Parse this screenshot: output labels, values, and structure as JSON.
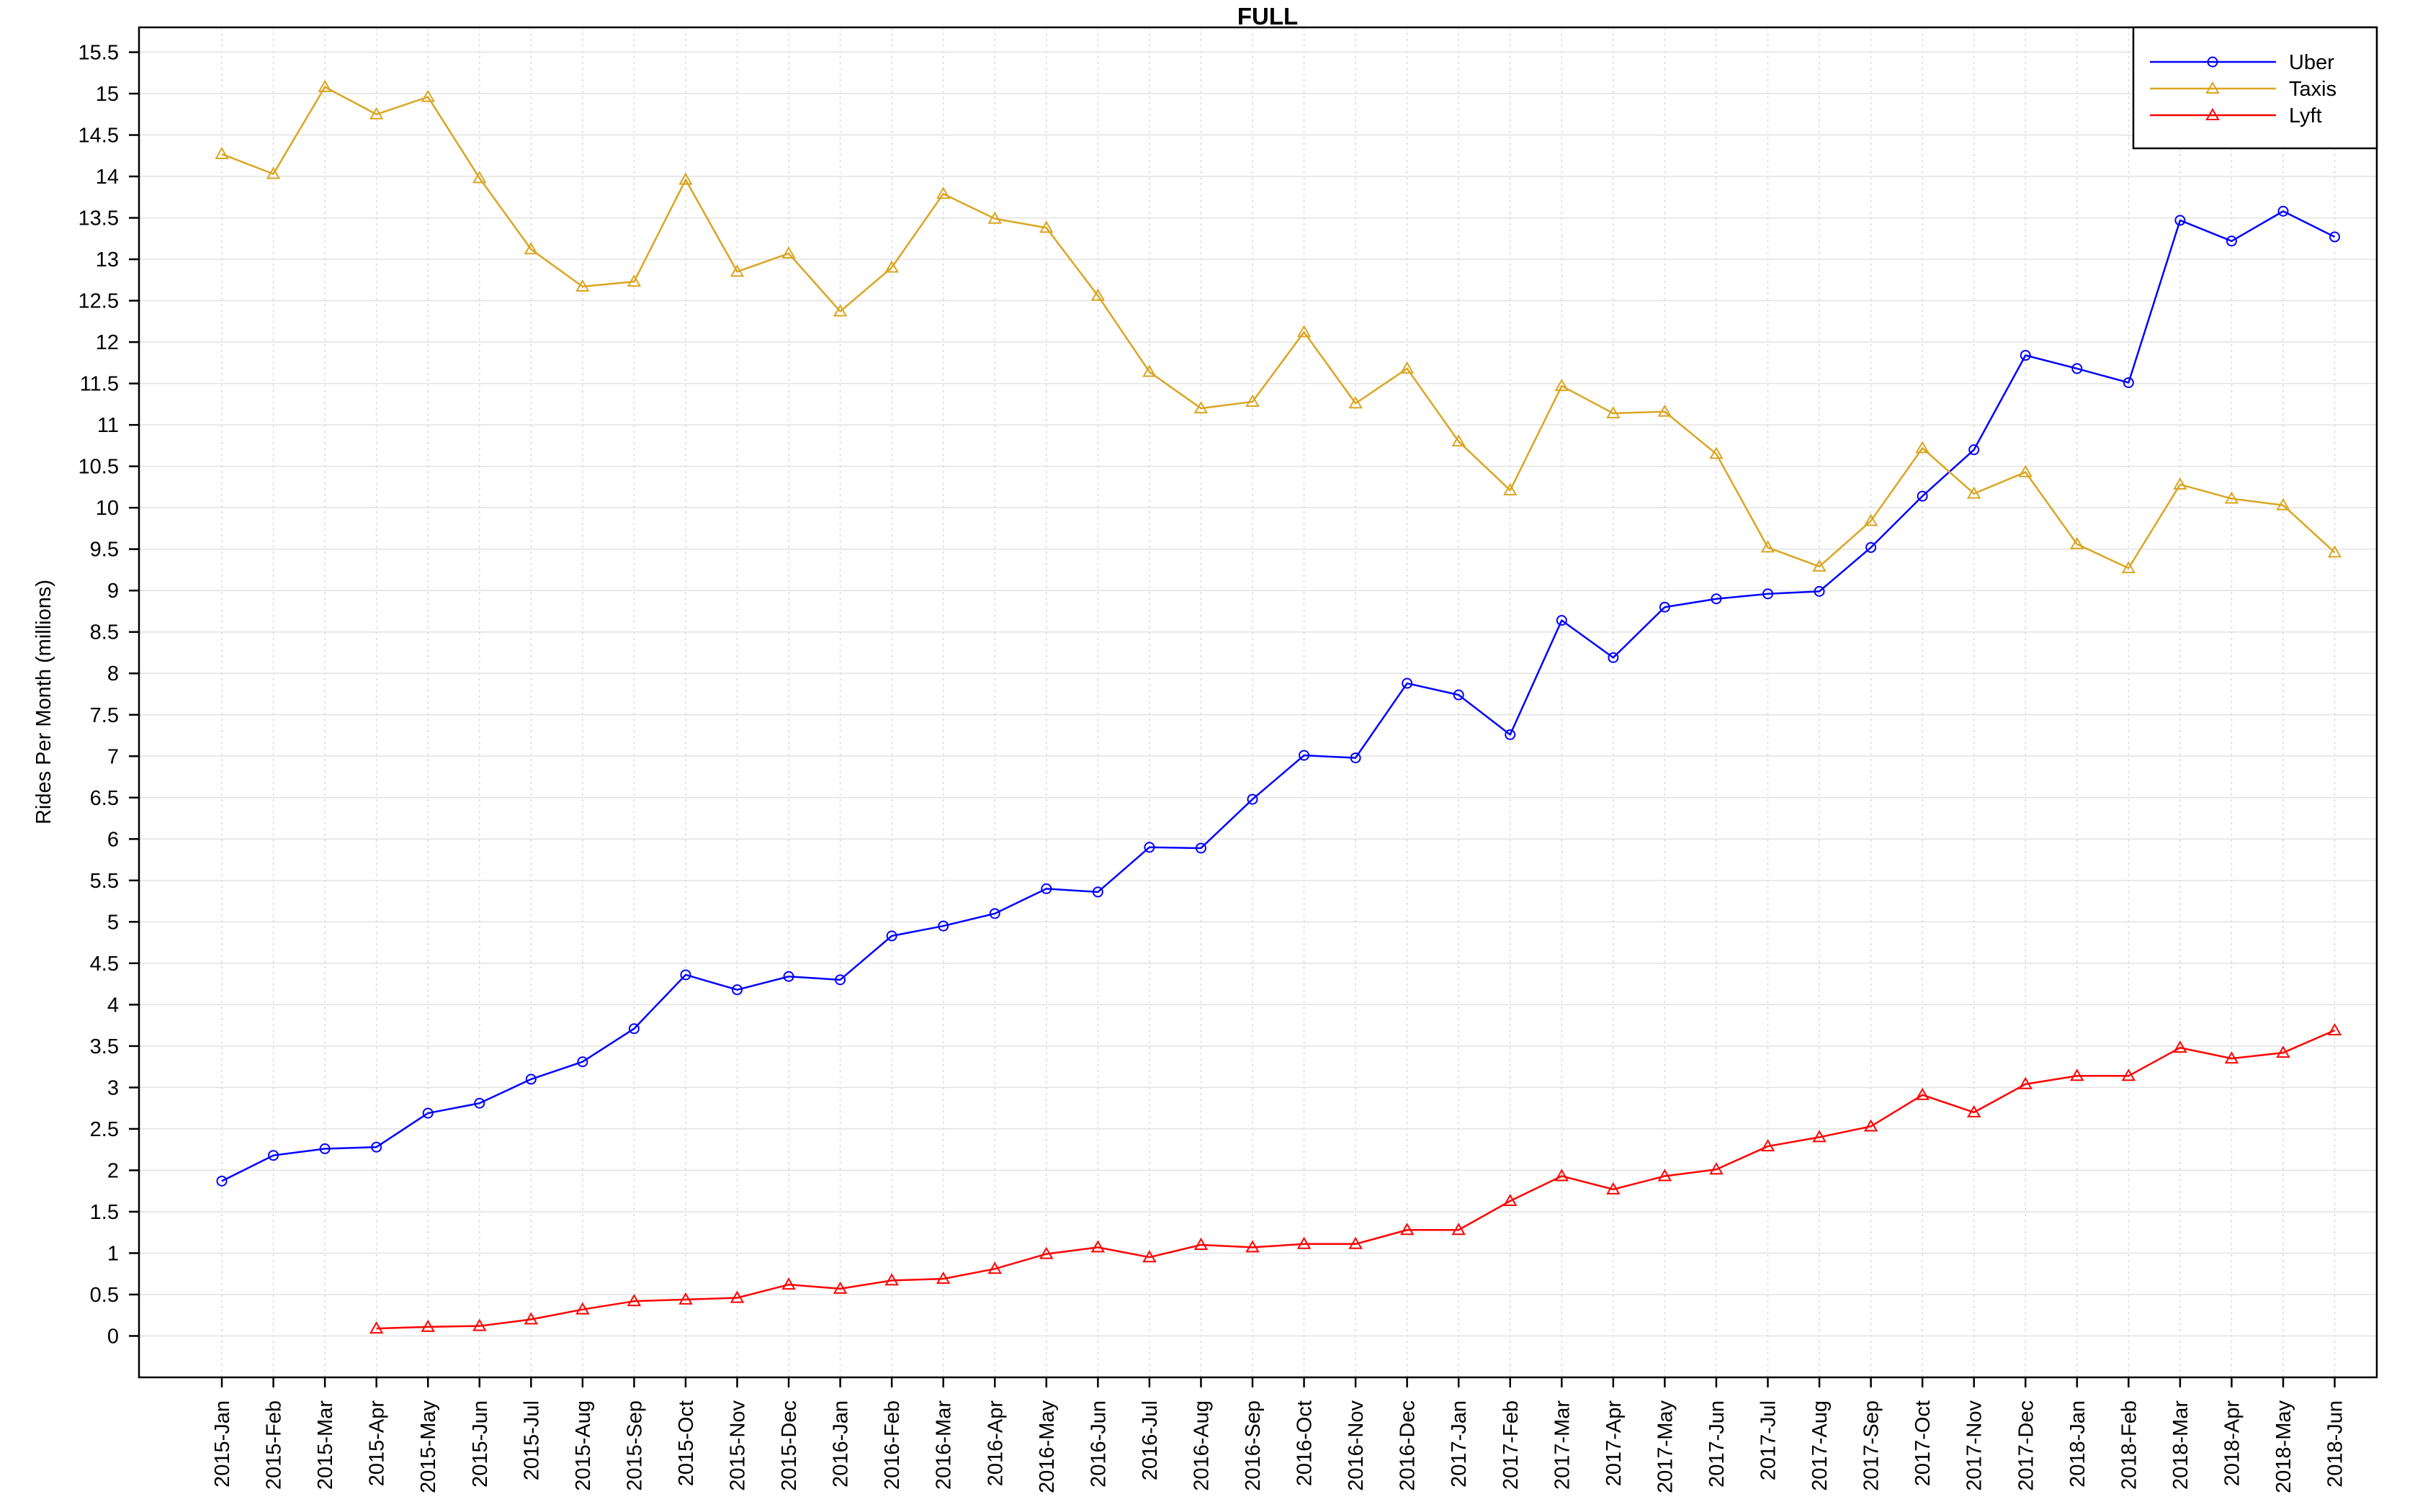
{
  "chart_data": {
    "type": "line",
    "title": "FULL",
    "xlabel": "",
    "ylabel": "Rides Per Month (millions)",
    "ylim": [
      -0.5,
      15.8
    ],
    "yticks": [
      0,
      0.5,
      1,
      1.5,
      2,
      2.5,
      3,
      3.5,
      4,
      4.5,
      5,
      5.5,
      6,
      6.5,
      7,
      7.5,
      8,
      8.5,
      9,
      9.5,
      10,
      10.5,
      11,
      11.5,
      12,
      12.5,
      13,
      13.5,
      14,
      14.5,
      15,
      15.5
    ],
    "grid": true,
    "legend_position": "top-right",
    "categories": [
      "2015-Jan",
      "2015-Feb",
      "2015-Mar",
      "2015-Apr",
      "2015-May",
      "2015-Jun",
      "2015-Jul",
      "2015-Aug",
      "2015-Sep",
      "2015-Oct",
      "2015-Nov",
      "2015-Dec",
      "2016-Jan",
      "2016-Feb",
      "2016-Mar",
      "2016-Apr",
      "2016-May",
      "2016-Jun",
      "2016-Jul",
      "2016-Aug",
      "2016-Sep",
      "2016-Oct",
      "2016-Nov",
      "2016-Dec",
      "2017-Jan",
      "2017-Feb",
      "2017-Mar",
      "2017-Apr",
      "2017-May",
      "2017-Jun",
      "2017-Jul",
      "2017-Aug",
      "2017-Sep",
      "2017-Oct",
      "2017-Nov",
      "2017-Dec",
      "2018-Jan",
      "2018-Feb",
      "2018-Mar",
      "2018-Apr",
      "2018-May",
      "2018-Jun"
    ],
    "series": [
      {
        "name": "Uber",
        "color": "#0000ff",
        "marker": "circle",
        "values": [
          1.87,
          2.18,
          2.26,
          2.28,
          2.69,
          2.81,
          3.1,
          3.31,
          3.71,
          4.36,
          4.18,
          4.34,
          4.3,
          4.83,
          4.95,
          5.1,
          5.4,
          5.36,
          5.9,
          5.89,
          6.48,
          7.01,
          6.98,
          7.88,
          7.74,
          7.26,
          8.64,
          8.19,
          8.8,
          8.9,
          8.96,
          8.99,
          9.52,
          10.14,
          10.7,
          11.84,
          11.68,
          11.51,
          13.47,
          13.22,
          13.58,
          13.27
        ]
      },
      {
        "name": "Taxis",
        "color": "#daa520",
        "marker": "triangle",
        "values": [
          14.27,
          14.03,
          15.08,
          14.75,
          14.96,
          13.98,
          13.12,
          12.67,
          12.73,
          13.96,
          12.85,
          13.07,
          12.37,
          12.9,
          13.79,
          13.49,
          13.38,
          12.56,
          11.64,
          11.2,
          11.28,
          12.12,
          11.26,
          11.68,
          10.8,
          10.21,
          11.47,
          11.14,
          11.16,
          10.65,
          9.52,
          9.29,
          9.84,
          10.72,
          10.17,
          10.43,
          9.56,
          9.27,
          10.28,
          10.11,
          10.03,
          9.46
        ]
      },
      {
        "name": "Lyft",
        "color": "#ff0000",
        "marker": "triangle",
        "values": [
          null,
          null,
          null,
          0.09,
          0.11,
          0.12,
          0.2,
          0.32,
          0.42,
          0.44,
          0.46,
          0.62,
          0.57,
          0.67,
          0.69,
          0.81,
          0.99,
          1.07,
          0.95,
          1.1,
          1.07,
          1.11,
          1.11,
          1.28,
          1.28,
          1.63,
          1.93,
          1.77,
          1.93,
          2.01,
          2.29,
          2.4,
          2.53,
          2.91,
          2.7,
          3.04,
          3.14,
          3.14,
          3.48,
          3.35,
          3.42,
          3.69
        ]
      }
    ]
  }
}
